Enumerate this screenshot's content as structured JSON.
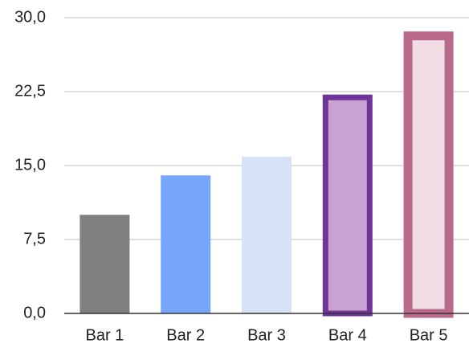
{
  "chart_data": {
    "type": "bar",
    "title": "",
    "xlabel": "",
    "ylabel": "",
    "categories": [
      "Bar 1",
      "Bar 2",
      "Bar 3",
      "Bar 4",
      "Bar 5"
    ],
    "values": [
      10,
      14,
      15.9,
      22.2,
      28.6
    ],
    "ylim": [
      0,
      30
    ],
    "yticks": [
      0,
      7.5,
      15,
      22.5,
      30
    ],
    "ytick_labels": [
      "0,0",
      "7,5",
      "15,0",
      "22,5",
      "30,0"
    ],
    "grid": true,
    "legend": "none",
    "bar_styles": [
      {
        "fill": "#808080",
        "stroke": "none"
      },
      {
        "fill": "#76a7fa",
        "stroke": "none"
      },
      {
        "fill": "#d6e2f5",
        "stroke": "none"
      },
      {
        "fill": "#c9a2d1",
        "stroke": "#6f3498"
      },
      {
        "fill": "#f3dde5",
        "stroke": "#b9698a"
      }
    ],
    "colors": {
      "grid": "#cccccc",
      "axis": "#333333",
      "text": "#222222"
    }
  }
}
